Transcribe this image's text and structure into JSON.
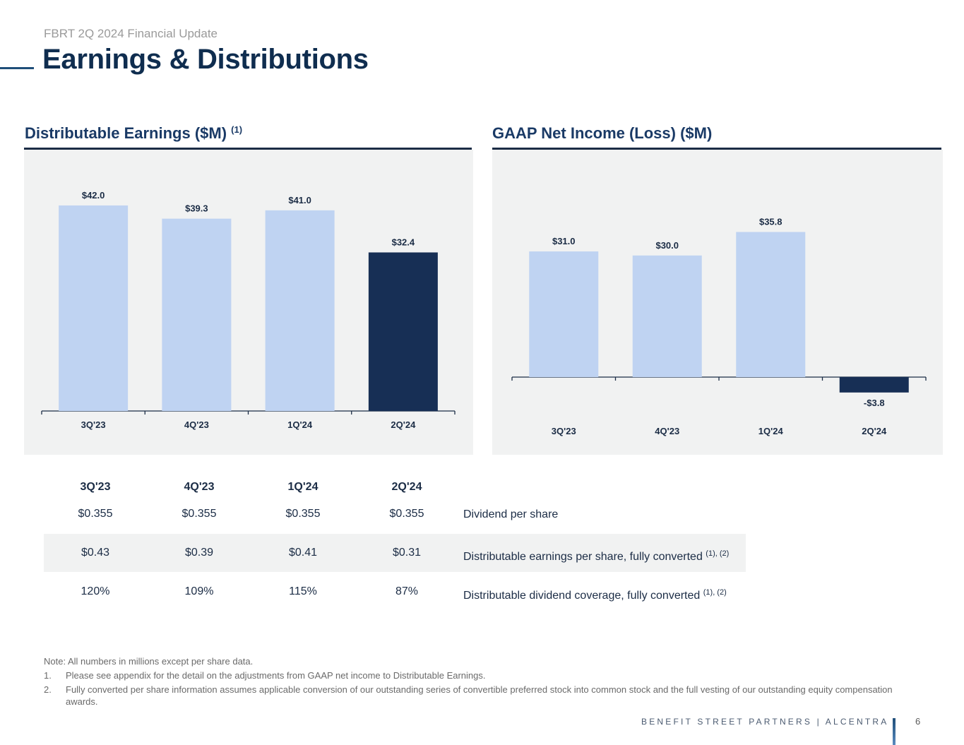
{
  "header": {
    "subtitle": "FBRT 2Q 2024 Financial Update",
    "title": "Earnings & Distributions"
  },
  "left_chart": {
    "heading": "Distributable Earnings ($M)",
    "heading_note": "(1)"
  },
  "right_chart": {
    "heading": "GAAP Net Income (Loss) ($M)"
  },
  "chart_data": [
    {
      "type": "bar",
      "title": "Distributable Earnings ($M)",
      "categories": [
        "3Q'23",
        "4Q'23",
        "1Q'24",
        "2Q'24"
      ],
      "values": [
        42.0,
        39.3,
        41.0,
        32.4
      ],
      "labels": [
        "$42.0",
        "$39.3",
        "$41.0",
        "$32.4"
      ],
      "colors": [
        "#bfd3f2",
        "#bfd3f2",
        "#bfd3f2",
        "#172f55"
      ],
      "ylim": [
        0,
        46
      ],
      "grid": false
    },
    {
      "type": "bar",
      "title": "GAAP Net Income (Loss) ($M)",
      "categories": [
        "3Q'23",
        "4Q'23",
        "1Q'24",
        "2Q'24"
      ],
      "values": [
        31.0,
        30.0,
        35.8,
        -3.8
      ],
      "labels": [
        "$31.0",
        "$30.0",
        "$35.8",
        "-$3.8"
      ],
      "colors": [
        "#bfd3f2",
        "#bfd3f2",
        "#bfd3f2",
        "#172f55"
      ],
      "ylim": [
        -10,
        40
      ],
      "grid": false
    }
  ],
  "metrics": {
    "quarters": [
      "3Q'23",
      "4Q'23",
      "1Q'24",
      "2Q'24"
    ],
    "rows": [
      {
        "values": [
          "$0.355",
          "$0.355",
          "$0.355",
          "$0.355"
        ],
        "label": "Dividend per share",
        "note": ""
      },
      {
        "values": [
          "$0.43",
          "$0.39",
          "$0.41",
          "$0.31"
        ],
        "label": "Distributable earnings per share, fully converted",
        "note": "(1), (2)"
      },
      {
        "values": [
          "120%",
          "109%",
          "115%",
          "87%"
        ],
        "label": "Distributable dividend coverage, fully converted",
        "note": "(1), (2)"
      }
    ]
  },
  "notes": {
    "intro": "Note: All numbers in millions except per share data.",
    "items": [
      {
        "num": "1.",
        "text": "Please see appendix for the detail on the adjustments from GAAP net income to Distributable Earnings."
      },
      {
        "num": "2.",
        "text": "Fully converted per share information assumes applicable conversion of our outstanding series of convertible preferred stock into common stock and the full vesting of our outstanding equity compensation awards."
      }
    ]
  },
  "footer": {
    "brand": "BENEFIT STREET PARTNERS | ALCENTRA",
    "page": "6"
  }
}
